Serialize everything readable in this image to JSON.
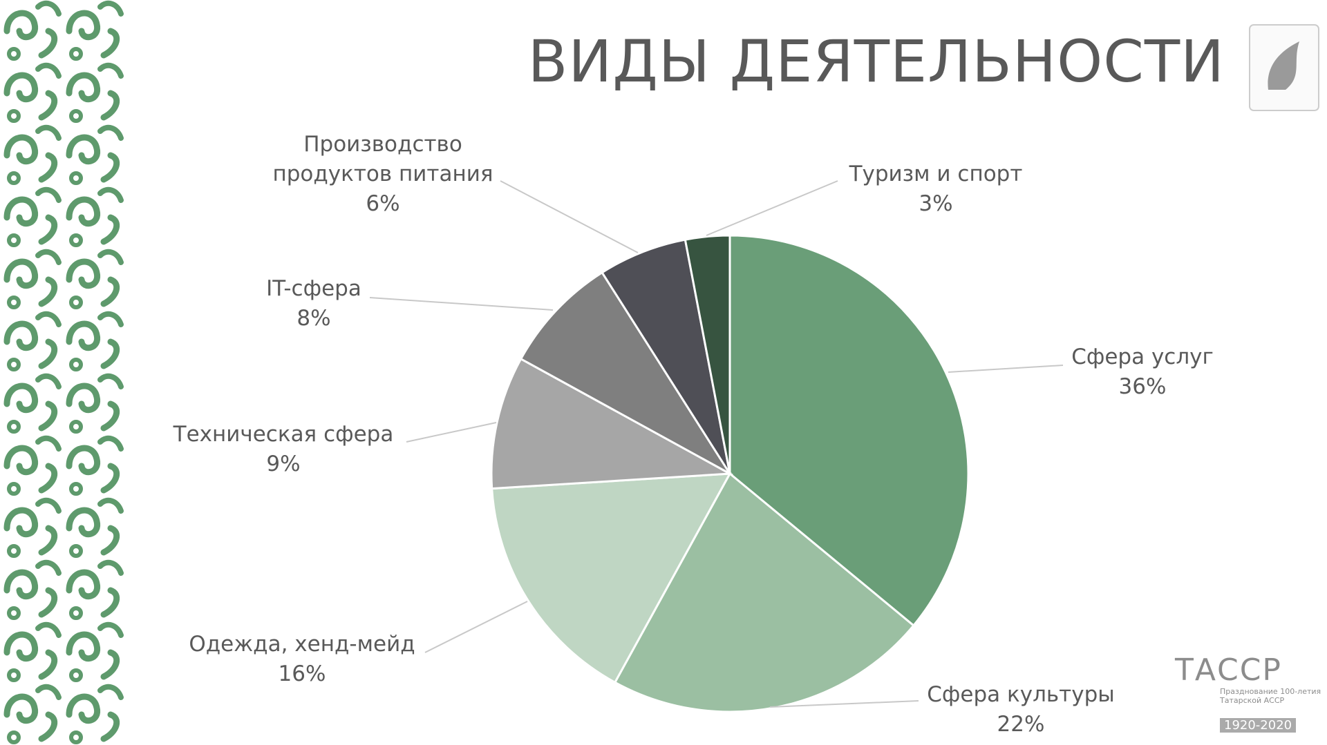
{
  "chart_data": {
    "type": "pie",
    "title": "ВИДЫ ДЕЯТЕЛЬНОСТИ",
    "categories": [
      "Сфера услуг",
      "Сфера культуры",
      "Одежда, хенд-мейд",
      "Техническая сфера",
      "IT-сфера",
      "Производство продуктов питания",
      "Туризм и спорт"
    ],
    "values": [
      36,
      22,
      16,
      9,
      8,
      6,
      3
    ],
    "value_labels": [
      "36%",
      "22%",
      "16%",
      "9%",
      "8%",
      "6%",
      "3%"
    ],
    "colors": [
      "#6a9e78",
      "#9bbfa2",
      "#bfd6c3",
      "#a6a6a6",
      "#7f7f7f",
      "#4f4f56",
      "#375440"
    ]
  },
  "logo": {
    "name": "ТАССР",
    "caption": "Празднование 100-летия Татарской АССР",
    "years": "1920-2020"
  }
}
